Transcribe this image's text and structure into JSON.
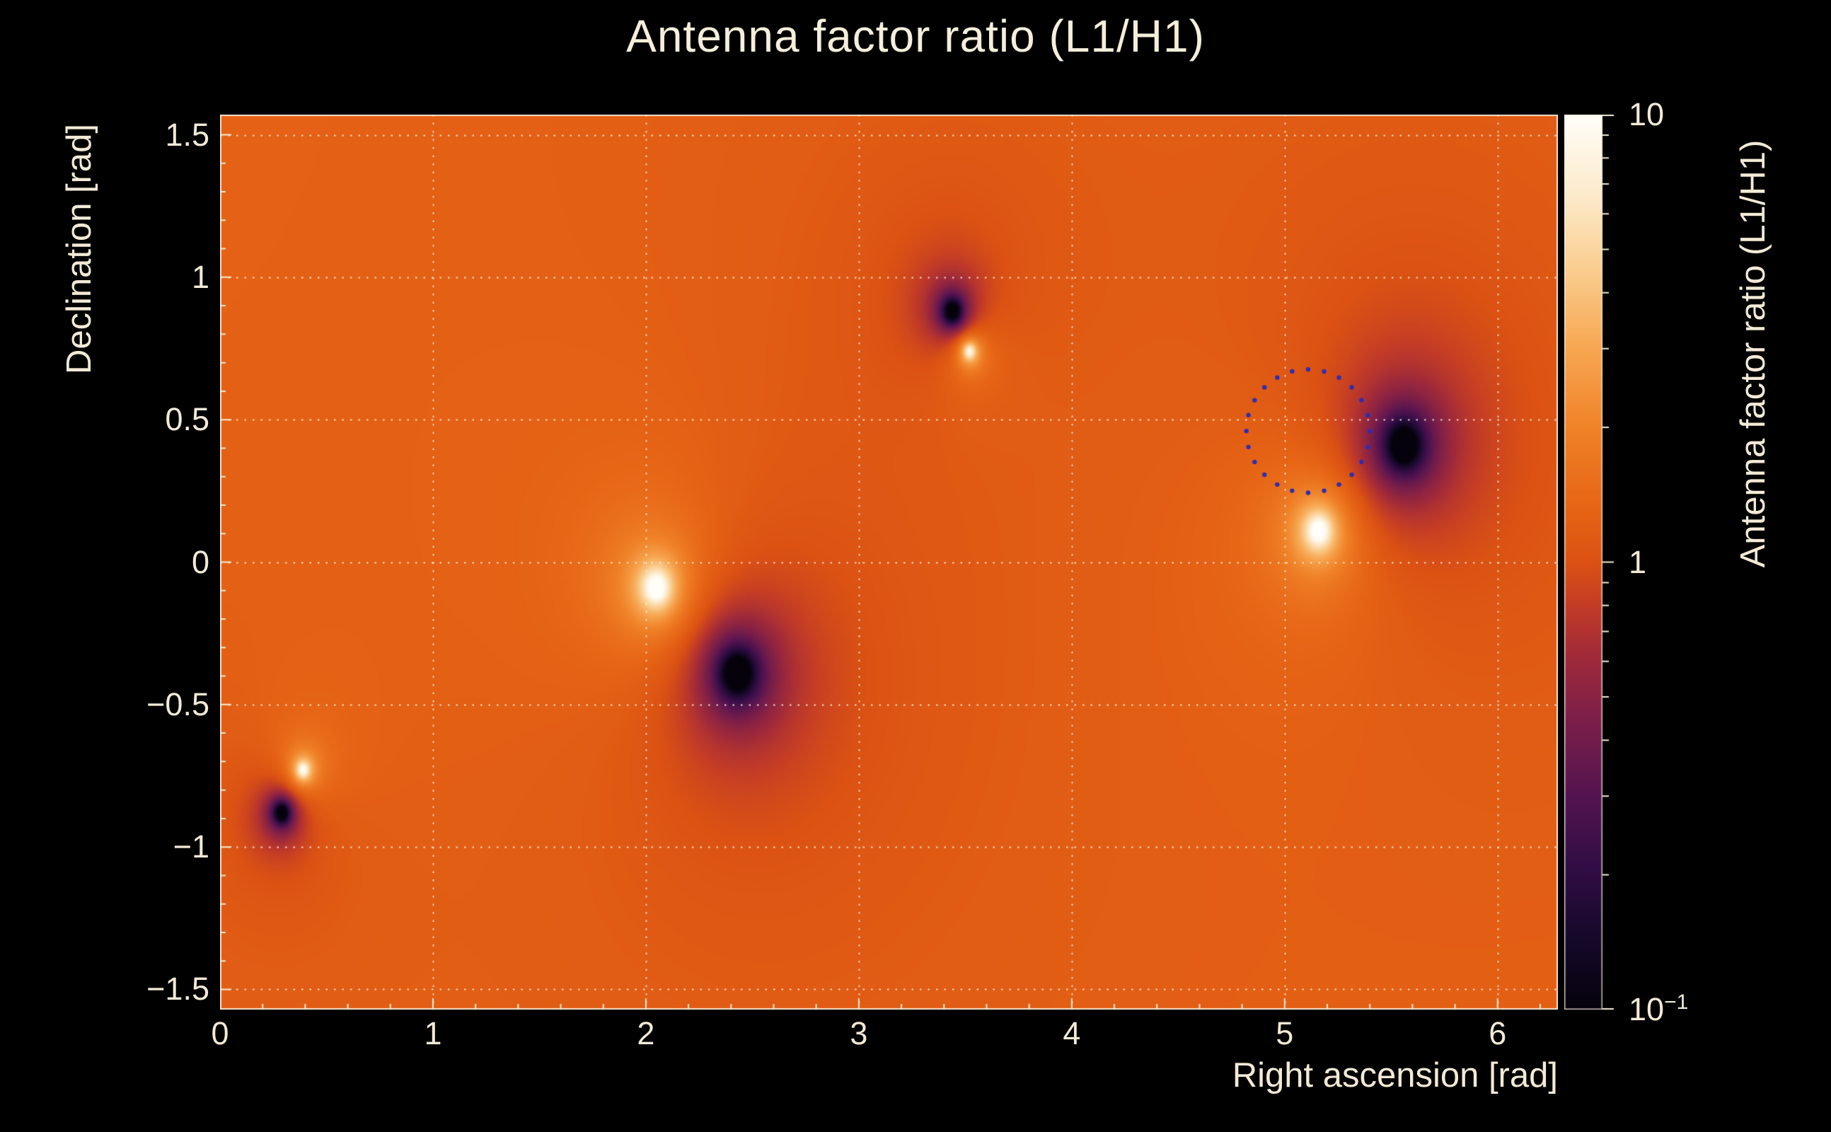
{
  "title": "Antenna factor ratio (L1/H1)",
  "colors": {
    "background": "#000000",
    "text": "#f3ead6",
    "grid": "#f8f2e2",
    "axis": "#f3ead6",
    "annotation_circle": "#2e2eb0"
  },
  "chart_data": {
    "type": "heatmap",
    "title": "Antenna factor ratio (L1/H1)",
    "xlabel": "Right ascension [rad]",
    "ylabel": "Declination [rad]",
    "zlabel": "Antenna factor ratio (L1/H1)",
    "x_range_rad": [
      0,
      6.2832
    ],
    "y_range_rad": [
      -1.5708,
      1.5708
    ],
    "z_range": [
      0.1,
      10
    ],
    "z_scale": "log",
    "background_ratio_level": 1.3,
    "x_ticks": [
      {
        "v": 0,
        "label": "0"
      },
      {
        "v": 1,
        "label": "1"
      },
      {
        "v": 2,
        "label": "2"
      },
      {
        "v": 3,
        "label": "3"
      },
      {
        "v": 4,
        "label": "4"
      },
      {
        "v": 5,
        "label": "5"
      },
      {
        "v": 6,
        "label": "6"
      }
    ],
    "y_ticks": [
      {
        "v": 1.5,
        "label": "1.5"
      },
      {
        "v": 1,
        "label": "1"
      },
      {
        "v": 0.5,
        "label": "0.5"
      },
      {
        "v": 0,
        "label": "0"
      },
      {
        "v": -0.5,
        "label": "−0.5"
      },
      {
        "v": -1,
        "label": "−1"
      },
      {
        "v": -1.5,
        "label": "−1.5"
      }
    ],
    "x_minor_step": 0.2,
    "y_minor_step": 0.1,
    "grid_x_lines": [
      1,
      2,
      3,
      4,
      5,
      6
    ],
    "grid_y_lines": [
      -1.5,
      -1,
      -0.5,
      0,
      0.5,
      1,
      1.5
    ],
    "colorbar_ticks": [
      {
        "v": 10,
        "label": "10",
        "sup": ""
      },
      {
        "v": 1,
        "label": "1",
        "sup": ""
      },
      {
        "v": 0.1,
        "label": "10",
        "sup": "−1"
      }
    ],
    "colorbar_minor_ticks": [
      0.2,
      0.3,
      0.4,
      0.5,
      0.6,
      0.7,
      0.8,
      0.9,
      2,
      3,
      4,
      5,
      6,
      7,
      8,
      9
    ],
    "features": [
      {
        "kind": "bright peak (ratio >10)",
        "ra": 0.39,
        "dec": -0.73,
        "s": 1.2,
        "w": 0.025
      },
      {
        "kind": "dark null (ratio <0.1)",
        "ra": 0.29,
        "dec": -0.88,
        "s": -1.7,
        "w": 0.025
      },
      {
        "kind": "bright peak (ratio >10)",
        "ra": 2.05,
        "dec": -0.09,
        "s": 1.35,
        "w": 0.05
      },
      {
        "kind": "dark null (ratio <0.1)",
        "ra": 2.43,
        "dec": -0.39,
        "s": -1.8,
        "w": 0.055
      },
      {
        "kind": "dark null (ratio <0.1)",
        "ra": 3.44,
        "dec": 0.88,
        "s": -1.7,
        "w": 0.03
      },
      {
        "kind": "bright peak (ratio >10)",
        "ra": 3.52,
        "dec": 0.74,
        "s": 1.2,
        "w": 0.025
      },
      {
        "kind": "bright peak (ratio >10)",
        "ra": 5.16,
        "dec": 0.11,
        "s": 1.3,
        "w": 0.048
      },
      {
        "kind": "dark null (ratio <0.1)",
        "ra": 5.56,
        "dec": 0.41,
        "s": -1.8,
        "w": 0.055
      }
    ],
    "annotation_circle": {
      "ra": 5.11,
      "dec": 0.46,
      "radius_rad": 0.29,
      "style": "dotted",
      "dot_count": 24
    },
    "field_model": {
      "base_log10": 0.12,
      "kernel": "log10(value) = base + sum_i s_i*w_i/sqrt(d_i^2+w_i^2), clamped to [-1,1]"
    },
    "palette_stops": [
      [
        0.0,
        5,
        2,
        12
      ],
      [
        0.08,
        22,
        9,
        42
      ],
      [
        0.16,
        50,
        13,
        69
      ],
      [
        0.24,
        84,
        20,
        80
      ],
      [
        0.32,
        122,
        30,
        73
      ],
      [
        0.39,
        158,
        41,
        59
      ],
      [
        0.45,
        194,
        59,
        39
      ],
      [
        0.5,
        219,
        82,
        19
      ],
      [
        0.56,
        230,
        100,
        21
      ],
      [
        0.65,
        240,
        130,
        40
      ],
      [
        0.74,
        247,
        167,
        82
      ],
      [
        0.83,
        250,
        206,
        145
      ],
      [
        0.91,
        252,
        234,
        203
      ],
      [
        1.0,
        255,
        254,
        248
      ]
    ]
  }
}
